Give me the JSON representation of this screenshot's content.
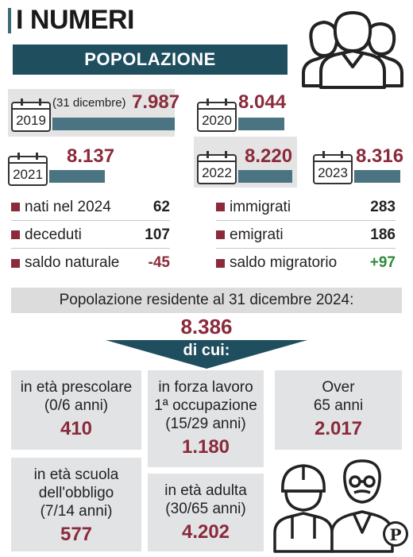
{
  "header": {
    "title": "I NUMERI",
    "banner": "POPOLAZIONE"
  },
  "years": [
    {
      "year": "2019",
      "note": "(31 dicembre)",
      "value": "7.987"
    },
    {
      "year": "2020",
      "value": "8.044"
    },
    {
      "year": "2021",
      "value": "8.137"
    },
    {
      "year": "2022",
      "value": "8.220"
    },
    {
      "year": "2023",
      "value": "8.316"
    }
  ],
  "natural": [
    {
      "label": "nati nel 2024",
      "value": "62"
    },
    {
      "label": "deceduti",
      "value": "107"
    },
    {
      "label": "saldo naturale",
      "value": "-45"
    }
  ],
  "migration": [
    {
      "label": "immigrati",
      "value": "283"
    },
    {
      "label": "emigrati",
      "value": "186"
    },
    {
      "label": "saldo migratorio",
      "value": "+97"
    }
  ],
  "resident": {
    "label": "Popolazione residente al 31 dicembre 2024:",
    "total": "8.386",
    "of_which": "di cui:"
  },
  "groups": {
    "prescolare": {
      "l1": "in età prescolare",
      "l2": "(0/6 anni)",
      "value": "410"
    },
    "scuola": {
      "l1": "in età scuola",
      "l2": "dell'obbligo",
      "l3": "(7/14 anni)",
      "value": "577"
    },
    "lavoro": {
      "l1": "in forza lavoro",
      "l2": "1ª occupazione",
      "l3": "(15/29 anni)",
      "value": "1.180"
    },
    "adulta": {
      "l1": "in età adulta",
      "l2": "(30/65 anni)",
      "value": "4.202"
    },
    "over": {
      "l1": "Over",
      "l2": "65 anni",
      "value": "2.017"
    }
  },
  "colors": {
    "accent": "#8b2a3b",
    "banner": "#1f4e5f",
    "bar": "#4a7482",
    "positive": "#2e8b3a"
  }
}
